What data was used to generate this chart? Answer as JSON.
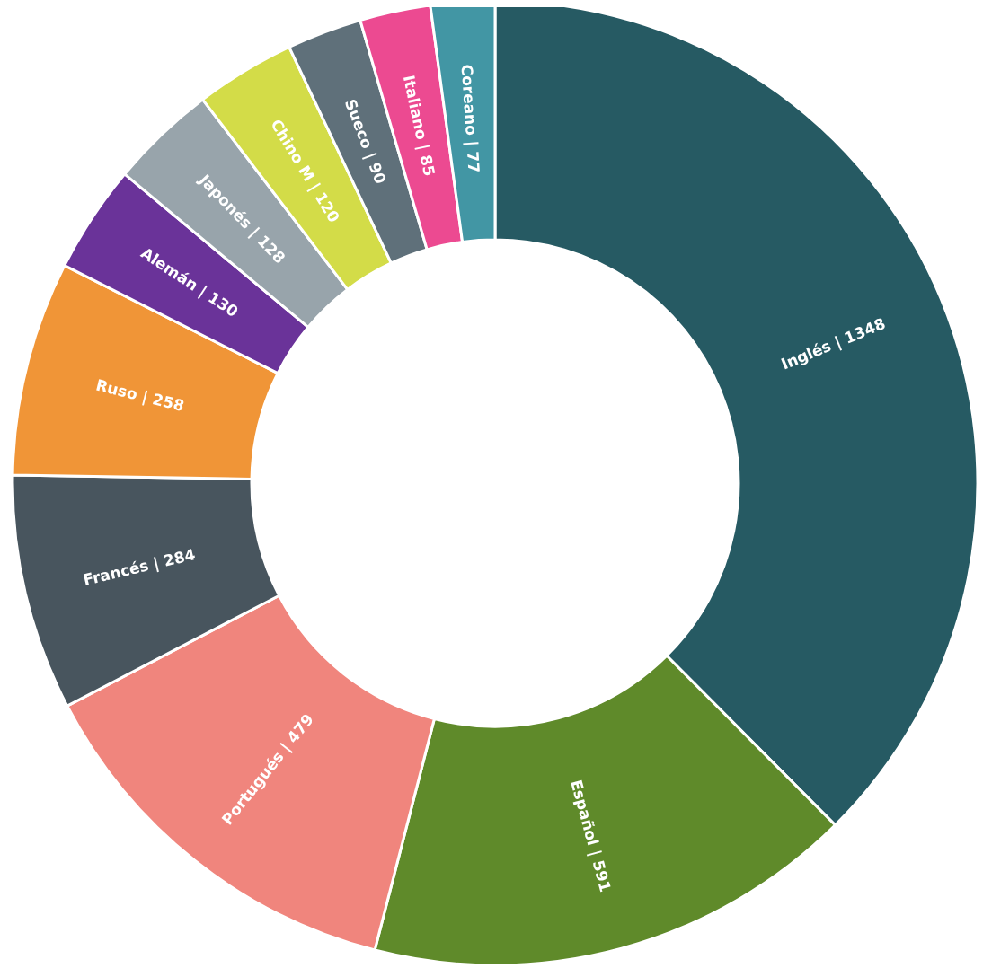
{
  "chart_data": {
    "type": "donut",
    "categories": [
      "Inglés | 1348",
      "Español | 591",
      "Portugués | 479",
      "Francés | 284",
      "Ruso | 258",
      "Alemán | 130",
      "Japonés | 128",
      "Chino M | 120",
      "Sueco | 90",
      "Italiano | 85",
      "Coreano | 77"
    ],
    "values": [
      1348,
      591,
      479,
      284,
      258,
      130,
      128,
      120,
      90,
      85,
      77
    ],
    "colors": [
      "#265a63",
      "#5f8a2a",
      "#f0857d",
      "#48555e",
      "#f09537",
      "#6a3399",
      "#98a4ab",
      "#d3dc48",
      "#5f707a",
      "#ec4a91",
      "#4296a4"
    ]
  }
}
